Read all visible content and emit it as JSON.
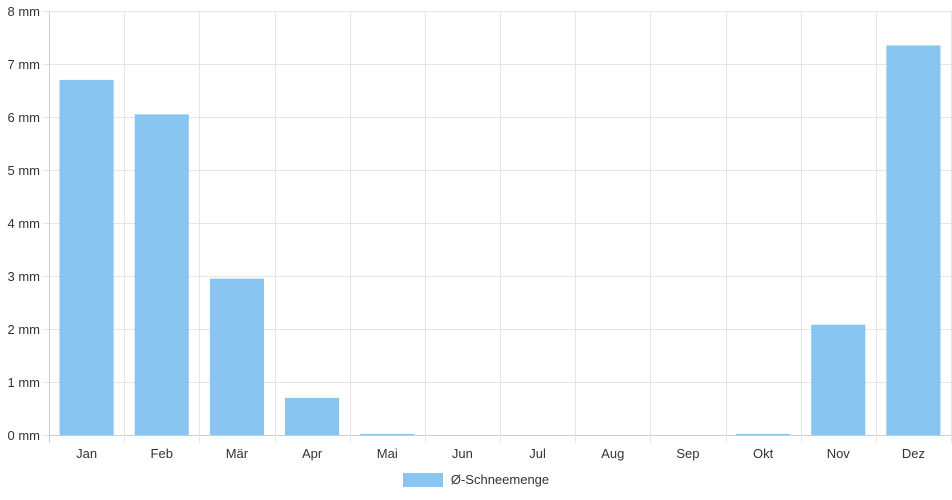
{
  "chart_data": {
    "type": "bar",
    "categories": [
      "Jan",
      "Feb",
      "Mär",
      "Apr",
      "Mai",
      "Jun",
      "Jul",
      "Aug",
      "Sep",
      "Okt",
      "Nov",
      "Dez"
    ],
    "series": [
      {
        "name": "Ø-Schneemenge",
        "values": [
          6.7,
          6.05,
          2.95,
          0.7,
          0.02,
          0,
          0,
          0,
          0,
          0.02,
          2.08,
          7.35
        ]
      }
    ],
    "y_ticks": [
      "0 mm",
      "1 mm",
      "2 mm",
      "3 mm",
      "4 mm",
      "5 mm",
      "6 mm",
      "7 mm",
      "8 mm"
    ],
    "ylim": [
      0,
      8
    ],
    "grid": true,
    "legend_position": "bottom",
    "colors": {
      "bar": "#88c5f1",
      "grid": "#e5e5e5",
      "axis": "#cccccc"
    }
  }
}
